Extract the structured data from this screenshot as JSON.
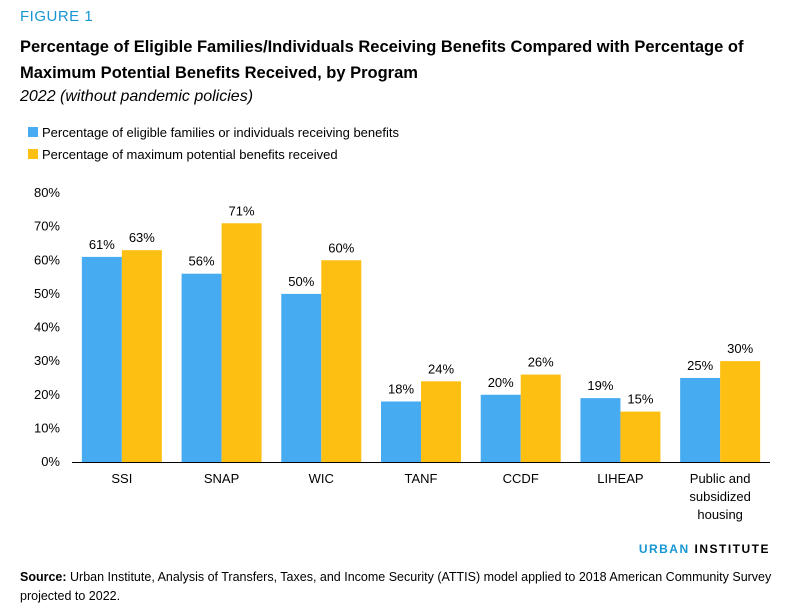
{
  "figure_label": "FIGURE 1",
  "title": "Percentage of Eligible Families/Individuals Receiving Benefits Compared with Percentage of Maximum Potential Benefits Received, by Program",
  "subtitle": "2022 (without pandemic policies)",
  "legend": [
    {
      "label": "Percentage of eligible families or individuals receiving benefits",
      "color": "#46abf1"
    },
    {
      "label": "Percentage of maximum potential benefits received",
      "color": "#fdbf11"
    }
  ],
  "chart_data": {
    "type": "bar",
    "categories": [
      "SSI",
      "SNAP",
      "WIC",
      "TANF",
      "CCDF",
      "LIHEAP",
      "Public and subsidized housing"
    ],
    "category_lines": [
      [
        "SSI"
      ],
      [
        "SNAP"
      ],
      [
        "WIC"
      ],
      [
        "TANF"
      ],
      [
        "CCDF"
      ],
      [
        "LIHEAP"
      ],
      [
        "Public and",
        "subsidized",
        "housing"
      ]
    ],
    "series": [
      {
        "name": "Percentage of eligible families or individuals receiving benefits",
        "values": [
          61,
          56,
          50,
          18,
          20,
          19,
          25
        ],
        "labels": [
          "61%",
          "56%",
          "50%",
          "18%",
          "20%",
          "19%",
          "25%"
        ],
        "color": "#46abf1"
      },
      {
        "name": "Percentage of maximum potential benefits received",
        "values": [
          63,
          71,
          60,
          24,
          26,
          15,
          30
        ],
        "labels": [
          "63%",
          "71%",
          "60%",
          "24%",
          "26%",
          "15%",
          "30%"
        ],
        "color": "#fdbf11"
      }
    ],
    "ylim": [
      0,
      80
    ],
    "yticks": [
      0,
      10,
      20,
      30,
      40,
      50,
      60,
      70,
      80
    ],
    "ytick_labels": [
      "0%",
      "10%",
      "20%",
      "30%",
      "40%",
      "50%",
      "60%",
      "70%",
      "80%"
    ],
    "xlabel": "",
    "ylabel": "",
    "grid": false
  },
  "brand": {
    "part1": "URBAN",
    "part2": " INSTITUTE"
  },
  "source": {
    "label": "Source:",
    "text": " Urban Institute, Analysis of Transfers, Taxes, and Income Security (ATTIS) model applied to 2018 American Community Survey projected to 2022."
  }
}
